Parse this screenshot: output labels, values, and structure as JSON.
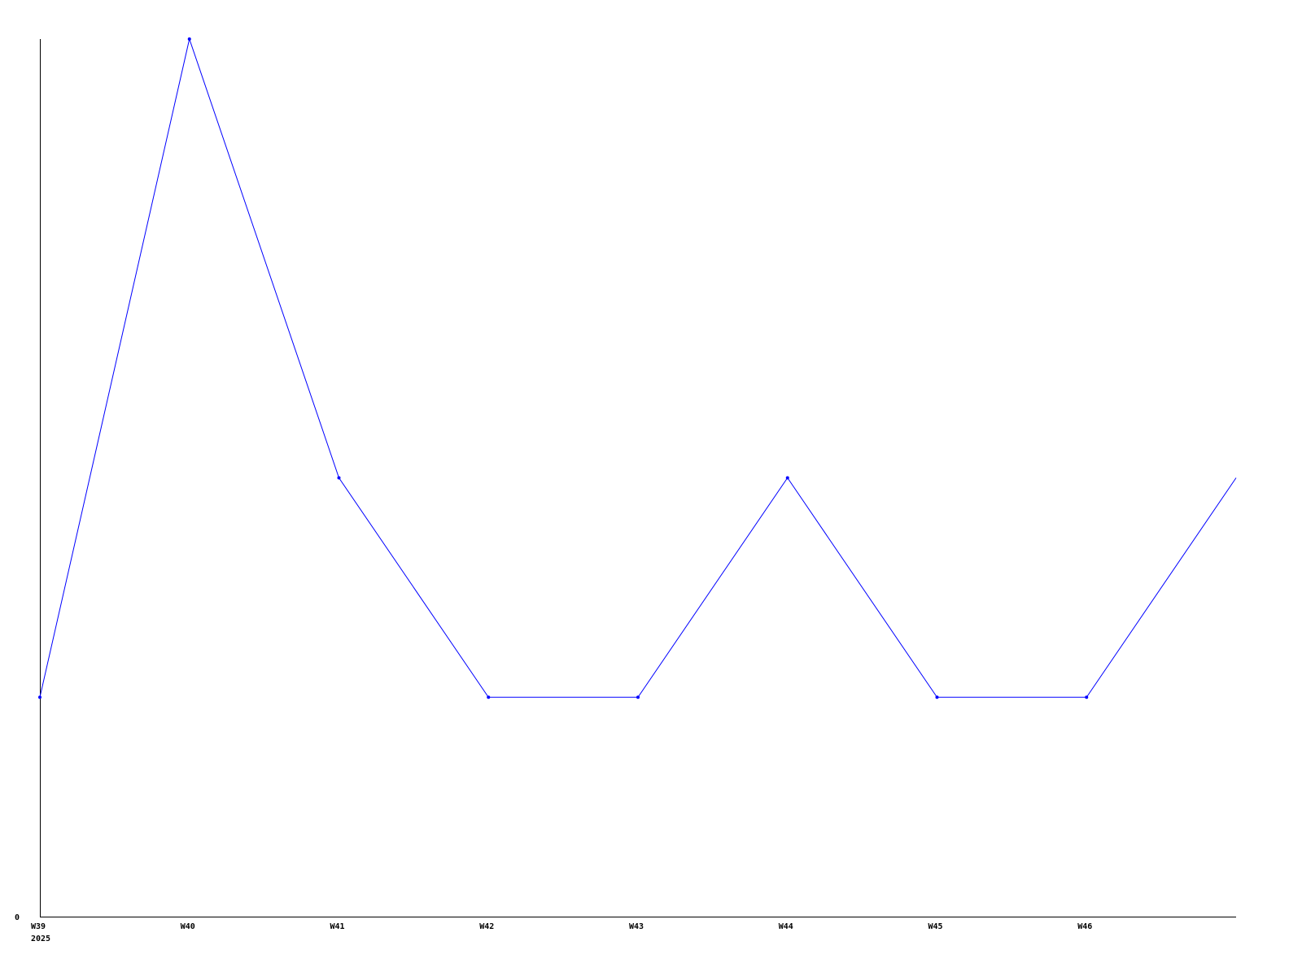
{
  "chart_data": {
    "type": "line",
    "title": "",
    "xlabel": "",
    "ylabel": "",
    "categories": [
      "W39",
      "W40",
      "W41",
      "W42",
      "W43",
      "W44",
      "W45",
      "W46",
      ""
    ],
    "year_label": "2025",
    "series": [
      {
        "values": [
          1,
          4,
          2,
          1,
          1,
          2,
          1,
          1,
          2
        ],
        "color": "#0000ff"
      }
    ],
    "ylim": [
      0,
      4
    ],
    "y_tick_labels": [
      "0"
    ],
    "grid": false,
    "legend": "none",
    "axis_color": "#000000"
  }
}
